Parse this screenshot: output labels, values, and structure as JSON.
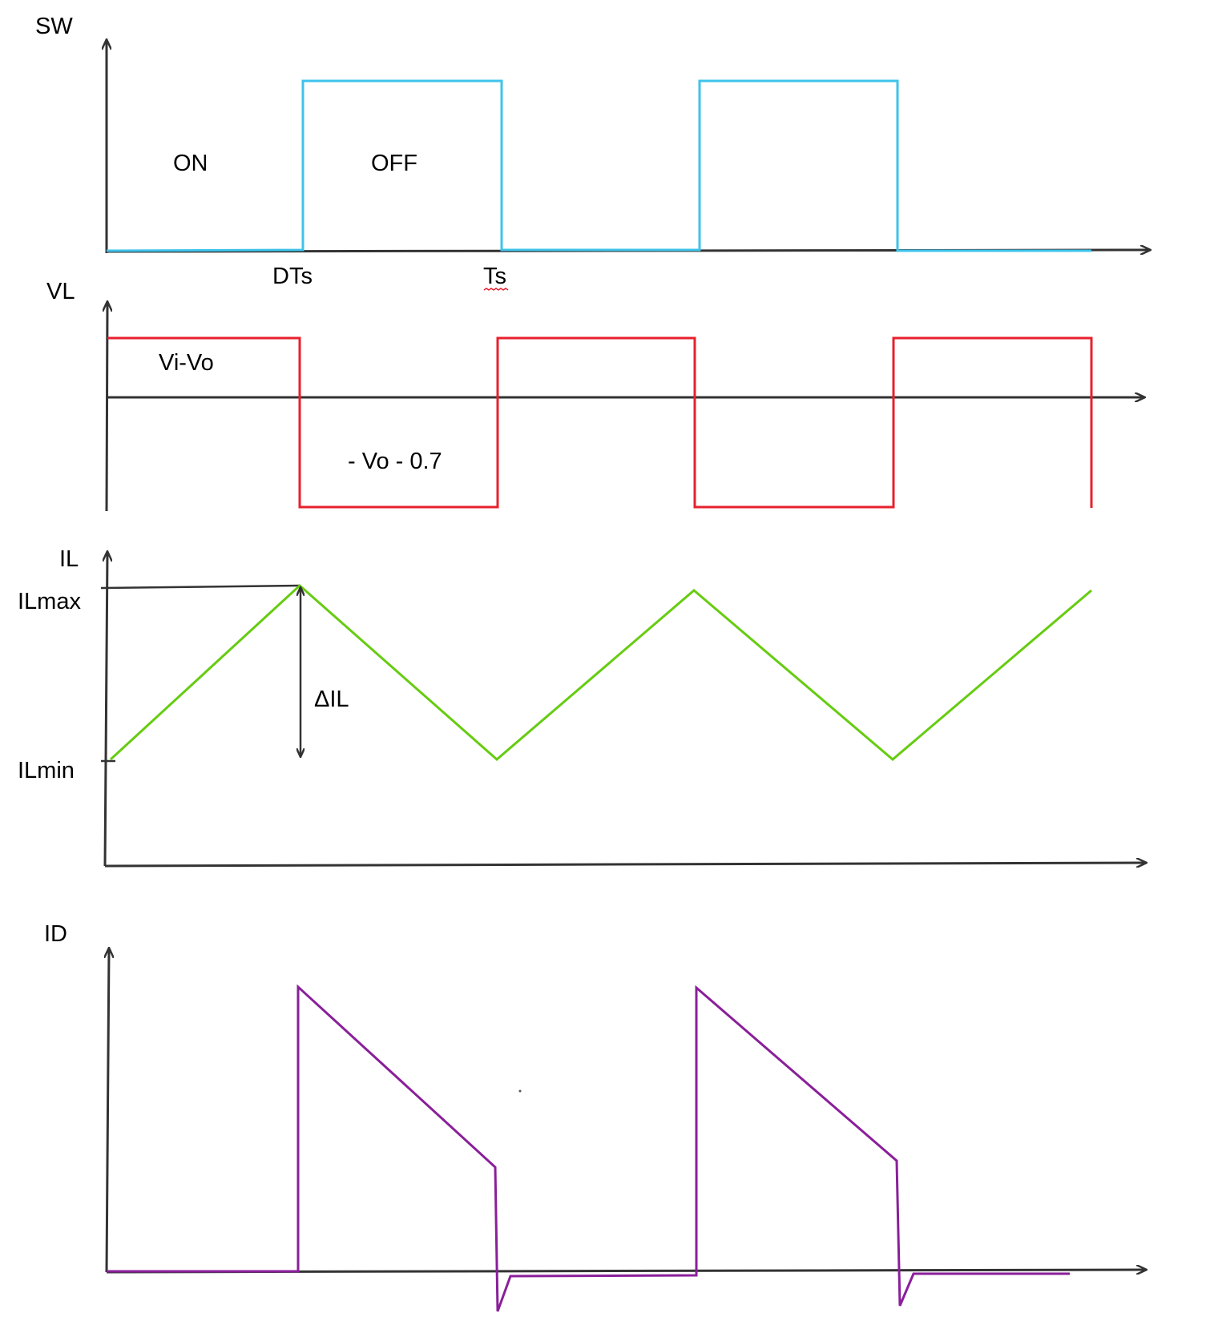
{
  "colors": {
    "axis": "#333333",
    "sw": "#3ec3ea",
    "vl": "#e8202d",
    "il": "#66cc11",
    "id": "#8a1f9a"
  },
  "panels": {
    "sw": {
      "axis_label": "SW",
      "on_label": "ON",
      "off_label": "OFF",
      "tick_dts": "DTs",
      "tick_ts": "Ts"
    },
    "vl": {
      "axis_label": "VL",
      "high_label": "Vi-Vo",
      "low_label": "- Vo - 0.7"
    },
    "il": {
      "axis_label": "IL",
      "max_label": "ILmax",
      "min_label": "ILmin",
      "ripple_label": "ΔIL"
    },
    "id": {
      "axis_label": "ID"
    }
  }
}
